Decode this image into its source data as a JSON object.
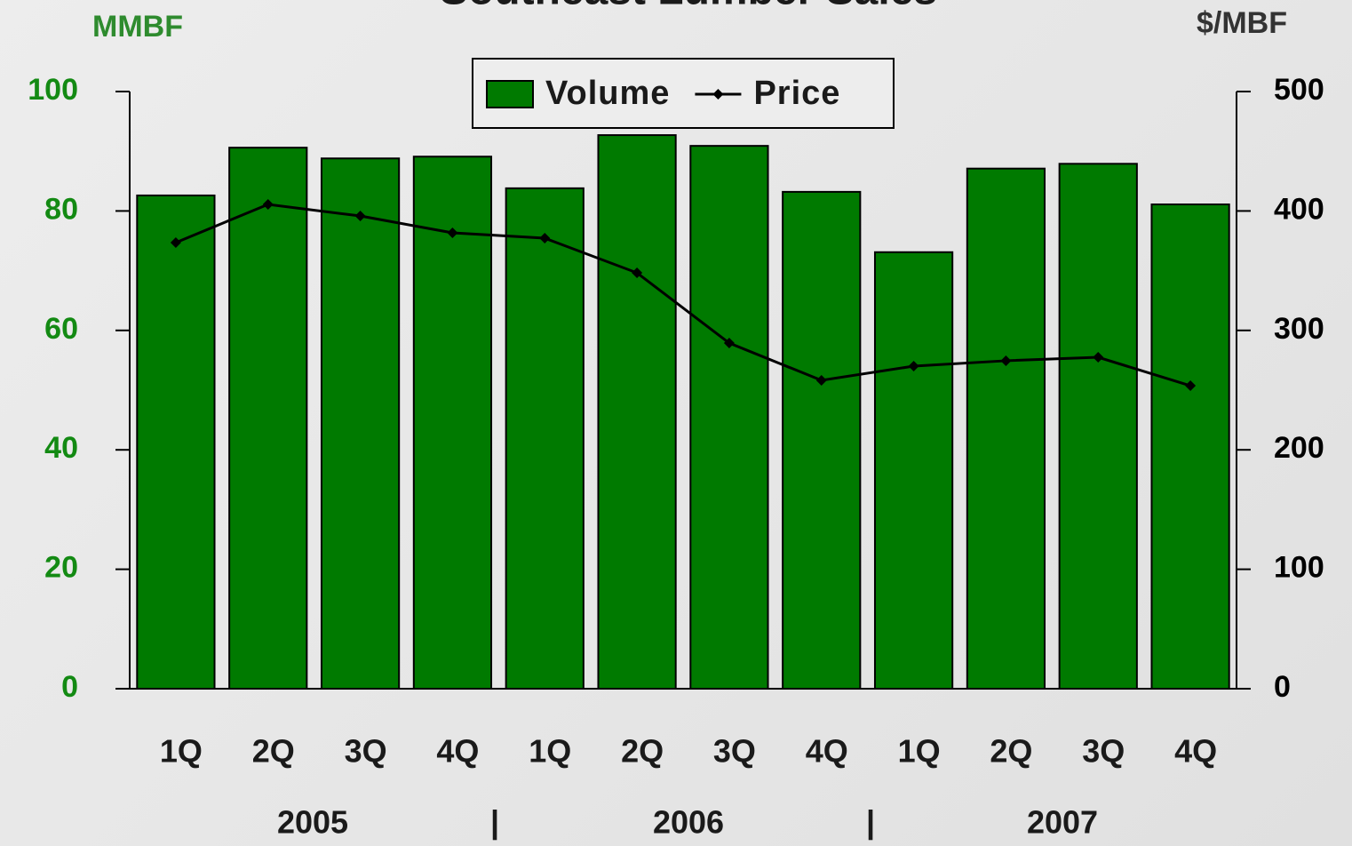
{
  "chart_data": {
    "type": "bar",
    "title": "Southeast Lumber Sales",
    "y_label": "MMBF",
    "y2_label": "$/MBF",
    "categories": [
      "1Q",
      "2Q",
      "3Q",
      "4Q",
      "1Q",
      "2Q",
      "3Q",
      "4Q",
      "1Q",
      "2Q",
      "3Q",
      "4Q"
    ],
    "group_labels": [
      "2005",
      "|",
      "2006",
      "|",
      "2007"
    ],
    "series": [
      {
        "name": "Volume",
        "type": "bar",
        "color": "#007a00",
        "values": [
          82.6,
          90.6,
          88.8,
          89.1,
          83.8,
          92.7,
          90.9,
          83.2,
          73.1,
          87.1,
          87.9,
          81.1
        ]
      },
      {
        "name": "Price",
        "type": "line",
        "axis": "y2",
        "color": "#000000",
        "values": [
          373.5,
          405.5,
          395.8,
          381.7,
          377.2,
          348.2,
          289.4,
          258.2,
          270.1,
          274.6,
          277.5,
          253.7
        ]
      }
    ],
    "ylim": [
      0,
      100
    ],
    "yticks": [
      0,
      20,
      40,
      60,
      80,
      100
    ],
    "y2lim": [
      0,
      500
    ],
    "y2ticks": [
      0,
      100,
      200,
      300,
      400,
      500
    ]
  }
}
